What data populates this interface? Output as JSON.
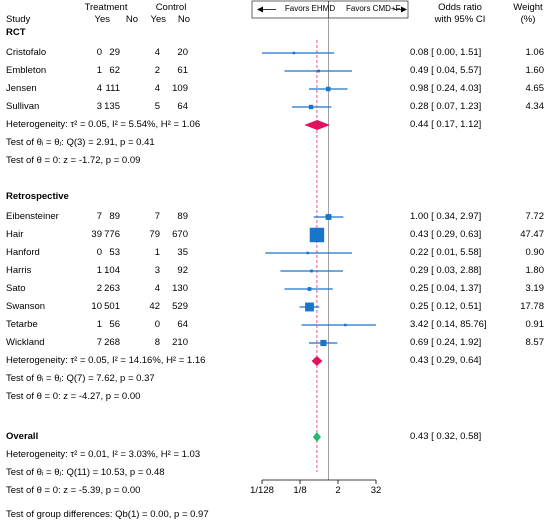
{
  "header": {
    "study": "Study",
    "treatment": "Treatment",
    "control": "Control",
    "yes": "Yes",
    "no": "No",
    "favors_left": "Favors EHMD",
    "favors_right": "Favors CMD+F",
    "or_line1": "Odds ratio",
    "or_line2": "with 95% CI",
    "weight_line1": "Weight",
    "weight_line2": "(%)"
  },
  "chart_data": {
    "type": "forest",
    "x_scale": "log2",
    "xlim": [
      0.0078125,
      32
    ],
    "x_ticks": [
      0.0078125,
      0.125,
      2,
      32
    ],
    "x_tick_labels": [
      "1/128",
      "1/8",
      "2",
      "32"
    ],
    "reference_line": 1,
    "overall_line": 0.43,
    "colors": {
      "marker": "#1a74c9",
      "rct_summary": "#e0115f",
      "retro_summary": "#e0115f",
      "overall_summary": "#2bb673"
    },
    "groups": [
      {
        "name": "RCT",
        "studies": [
          {
            "study": "Cristofalo",
            "t_yes": "0",
            "t_no": "29",
            "c_yes": "4",
            "c_no": "20",
            "or": 0.08,
            "lo": 0.0,
            "hi": 1.51,
            "ci_text": "0.08 [ 0.00,    1.51]",
            "weight": "1.06",
            "w": 1.06
          },
          {
            "study": "Embleton",
            "t_yes": "1",
            "t_no": "62",
            "c_yes": "2",
            "c_no": "61",
            "or": 0.49,
            "lo": 0.04,
            "hi": 5.57,
            "ci_text": "0.49 [ 0.04,    5.57]",
            "weight": "1.60",
            "w": 1.6
          },
          {
            "study": "Jensen",
            "t_yes": "4",
            "t_no": "111",
            "c_yes": "4",
            "c_no": "109",
            "or": 0.98,
            "lo": 0.24,
            "hi": 4.03,
            "ci_text": "0.98 [ 0.24,    4.03]",
            "weight": "4.65",
            "w": 4.65
          },
          {
            "study": "Sullivan",
            "t_yes": "3",
            "t_no": "135",
            "c_yes": "5",
            "c_no": "64",
            "or": 0.28,
            "lo": 0.07,
            "hi": 1.23,
            "ci_text": "0.28 [ 0.07,    1.23]",
            "weight": "4.34",
            "w": 4.34
          }
        ],
        "summary": {
          "or": 0.44,
          "lo": 0.17,
          "hi": 1.12,
          "ci_text": "0.44 [ 0.17,    1.12]"
        },
        "heterogeneity": "Heterogeneity: τ² = 0.05, I² = 5.54%, H² = 1.06",
        "test_equal": "Test of θᵢ = θⱼ: Q(3) = 2.91, p = 0.41",
        "test_zero": "Test of θ = 0: z = -1.72, p = 0.09"
      },
      {
        "name": "Retrospective",
        "studies": [
          {
            "study": "Eibensteiner",
            "t_yes": "7",
            "t_no": "89",
            "c_yes": "7",
            "c_no": "89",
            "or": 1.0,
            "lo": 0.34,
            "hi": 2.97,
            "ci_text": "1.00 [ 0.34,    2.97]",
            "weight": "7.72",
            "w": 7.72
          },
          {
            "study": "Hair",
            "t_yes": "39",
            "t_no": "776",
            "c_yes": "79",
            "c_no": "670",
            "or": 0.43,
            "lo": 0.29,
            "hi": 0.63,
            "ci_text": "0.43 [ 0.29,    0.63]",
            "weight": "47.47",
            "w": 47.47
          },
          {
            "study": "Hanford",
            "t_yes": "0",
            "t_no": "53",
            "c_yes": "1",
            "c_no": "35",
            "or": 0.22,
            "lo": 0.01,
            "hi": 5.58,
            "ci_text": "0.22 [ 0.01,    5.58]",
            "weight": "0.90",
            "w": 0.9
          },
          {
            "study": "Harris",
            "t_yes": "1",
            "t_no": "104",
            "c_yes": "3",
            "c_no": "92",
            "or": 0.29,
            "lo": 0.03,
            "hi": 2.88,
            "ci_text": "0.29 [ 0.03,    2.88]",
            "weight": "1.80",
            "w": 1.8
          },
          {
            "study": "Sato",
            "t_yes": "2",
            "t_no": "263",
            "c_yes": "4",
            "c_no": "130",
            "or": 0.25,
            "lo": 0.04,
            "hi": 1.37,
            "ci_text": "0.25 [ 0.04,    1.37]",
            "weight": "3.19",
            "w": 3.19
          },
          {
            "study": "Swanson",
            "t_yes": "10",
            "t_no": "501",
            "c_yes": "42",
            "c_no": "529",
            "or": 0.25,
            "lo": 0.12,
            "hi": 0.51,
            "ci_text": "0.25 [ 0.12,    0.51]",
            "weight": "17.78",
            "w": 17.78
          },
          {
            "study": "Tetarbe",
            "t_yes": "1",
            "t_no": "56",
            "c_yes": "0",
            "c_no": "64",
            "or": 3.42,
            "lo": 0.14,
            "hi": 85.76,
            "ci_text": "3.42 [ 0.14,  85.76]",
            "weight": "0.91",
            "w": 0.91
          },
          {
            "study": "Wickland",
            "t_yes": "7",
            "t_no": "268",
            "c_yes": "8",
            "c_no": "210",
            "or": 0.69,
            "lo": 0.24,
            "hi": 1.92,
            "ci_text": "0.69 [ 0.24,    1.92]",
            "weight": "8.57",
            "w": 8.57
          }
        ],
        "summary": {
          "or": 0.43,
          "lo": 0.29,
          "hi": 0.64,
          "ci_text": "0.43 [ 0.29,    0.64]"
        },
        "heterogeneity": "Heterogeneity: τ² = 0.05, I² = 14.16%, H² = 1.16",
        "test_equal": "Test of θᵢ = θⱼ: Q(7) = 7.62, p = 0.37",
        "test_zero": "Test of θ = 0: z = -4.27, p = 0.00"
      }
    ],
    "overall": {
      "label": "Overall",
      "or": 0.43,
      "lo": 0.32,
      "hi": 0.58,
      "ci_text": "0.43 [ 0.32,    0.58]",
      "heterogeneity": "Heterogeneity: τ² = 0.01, I² = 3.03%, H² = 1.03",
      "test_equal": "Test of θᵢ = θⱼ: Q(11) = 10.53, p = 0.48",
      "test_zero": "Test of θ = 0: z = -5.39, p = 0.00"
    },
    "group_difference": "Test of group differences: Qb(1) = 0.00, p = 0.97"
  }
}
